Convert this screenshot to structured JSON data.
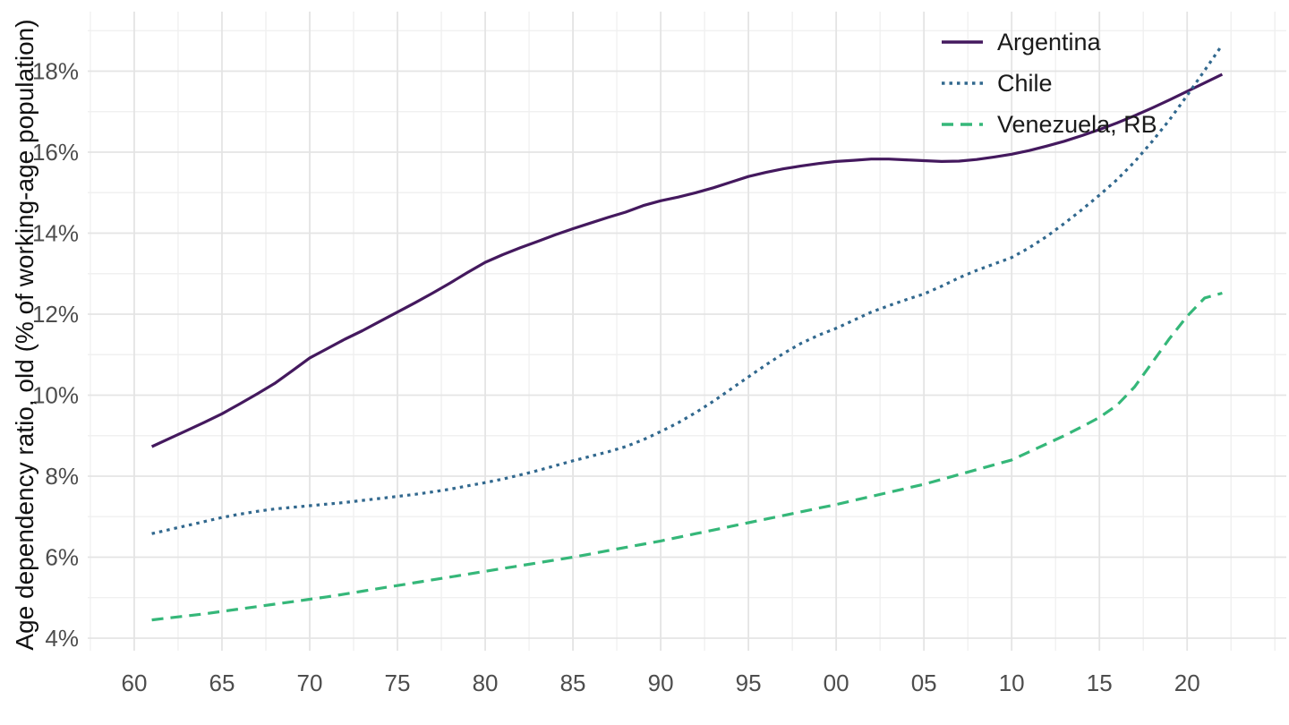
{
  "chart_data": {
    "type": "line",
    "title": "",
    "xlabel": "",
    "ylabel": "Age dependency ratio, old (% of working-age population)",
    "grid": true,
    "legend_position": "top-right-inside",
    "x_domain": [
      1957.35,
      2025.65
    ],
    "y_domain": [
      3.69,
      19.47
    ],
    "x_ticks": [
      1960,
      1965,
      1970,
      1975,
      1980,
      1985,
      1990,
      1995,
      2000,
      2005,
      2010,
      2015,
      2020
    ],
    "x_tick_labels": [
      "60",
      "65",
      "70",
      "75",
      "80",
      "85",
      "90",
      "95",
      "00",
      "05",
      "10",
      "15",
      "20"
    ],
    "x_minor_ticks": [
      1957.5,
      1962.5,
      1967.5,
      1972.5,
      1977.5,
      1982.5,
      1987.5,
      1992.5,
      1997.5,
      2002.5,
      2007.5,
      2012.5,
      2017.5,
      2022.5,
      2025
    ],
    "y_ticks": [
      4,
      6,
      8,
      10,
      12,
      14,
      16,
      18
    ],
    "y_tick_labels": [
      "4%",
      "6%",
      "8%",
      "10%",
      "12%",
      "14%",
      "16%",
      "18%"
    ],
    "y_minor_ticks": [
      5,
      7,
      9,
      11,
      13,
      15,
      17,
      19
    ],
    "years": [
      1961,
      1962,
      1963,
      1964,
      1965,
      1966,
      1967,
      1968,
      1969,
      1970,
      1971,
      1972,
      1973,
      1974,
      1975,
      1976,
      1977,
      1978,
      1979,
      1980,
      1981,
      1982,
      1983,
      1984,
      1985,
      1986,
      1987,
      1988,
      1989,
      1990,
      1991,
      1992,
      1993,
      1994,
      1995,
      1996,
      1997,
      1998,
      1999,
      2000,
      2001,
      2002,
      2003,
      2004,
      2005,
      2006,
      2007,
      2008,
      2009,
      2010,
      2011,
      2012,
      2013,
      2014,
      2015,
      2016,
      2017,
      2018,
      2019,
      2020,
      2021,
      2022
    ],
    "series": [
      {
        "name": "Argentina",
        "color": "#44195E",
        "line_style": "solid",
        "values": [
          8.73,
          8.93,
          9.13,
          9.33,
          9.54,
          9.78,
          10.03,
          10.29,
          10.6,
          10.92,
          11.15,
          11.38,
          11.59,
          11.82,
          12.05,
          12.28,
          12.52,
          12.77,
          13.03,
          13.28,
          13.47,
          13.64,
          13.8,
          13.96,
          14.11,
          14.25,
          14.39,
          14.52,
          14.68,
          14.8,
          14.89,
          15.0,
          15.12,
          15.26,
          15.4,
          15.5,
          15.59,
          15.66,
          15.72,
          15.77,
          15.8,
          15.83,
          15.83,
          15.81,
          15.79,
          15.77,
          15.78,
          15.82,
          15.88,
          15.95,
          16.04,
          16.15,
          16.27,
          16.41,
          16.56,
          16.72,
          16.9,
          17.09,
          17.29,
          17.5,
          17.71,
          17.92
        ]
      },
      {
        "name": "Chile",
        "color": "#31688E",
        "line_style": "dotted",
        "values": [
          6.58,
          6.68,
          6.78,
          6.88,
          6.98,
          7.06,
          7.13,
          7.19,
          7.23,
          7.27,
          7.31,
          7.35,
          7.4,
          7.45,
          7.5,
          7.55,
          7.61,
          7.68,
          7.76,
          7.84,
          7.93,
          8.03,
          8.14,
          8.26,
          8.38,
          8.49,
          8.6,
          8.73,
          8.9,
          9.1,
          9.32,
          9.57,
          9.85,
          10.15,
          10.45,
          10.75,
          11.03,
          11.28,
          11.48,
          11.65,
          11.85,
          12.05,
          12.21,
          12.36,
          12.5,
          12.69,
          12.9,
          13.08,
          13.24,
          13.4,
          13.64,
          13.92,
          14.24,
          14.58,
          14.94,
          15.32,
          15.76,
          16.26,
          16.8,
          17.4,
          18.02,
          18.65
        ]
      },
      {
        "name": "Venezuela, RB",
        "color": "#35B779",
        "line_style": "dashed",
        "values": [
          4.45,
          4.5,
          4.55,
          4.6,
          4.66,
          4.72,
          4.78,
          4.84,
          4.9,
          4.96,
          5.02,
          5.09,
          5.16,
          5.23,
          5.3,
          5.37,
          5.44,
          5.51,
          5.58,
          5.65,
          5.72,
          5.79,
          5.86,
          5.93,
          6.0,
          6.08,
          6.16,
          6.24,
          6.32,
          6.4,
          6.49,
          6.58,
          6.67,
          6.76,
          6.85,
          6.94,
          7.03,
          7.12,
          7.21,
          7.3,
          7.4,
          7.5,
          7.6,
          7.7,
          7.8,
          7.92,
          8.04,
          8.16,
          8.28,
          8.4,
          8.6,
          8.8,
          9.0,
          9.22,
          9.45,
          9.75,
          10.2,
          10.8,
          11.4,
          11.95,
          12.4,
          12.52
        ]
      }
    ],
    "style": {
      "major_grid_color": "#E4E4E4",
      "minor_grid_color": "#F0F0F0",
      "tick_label_color": "#4D4D4D",
      "legend_text_color": "#1A1A1A",
      "background_color": "#FFFFFF"
    }
  }
}
